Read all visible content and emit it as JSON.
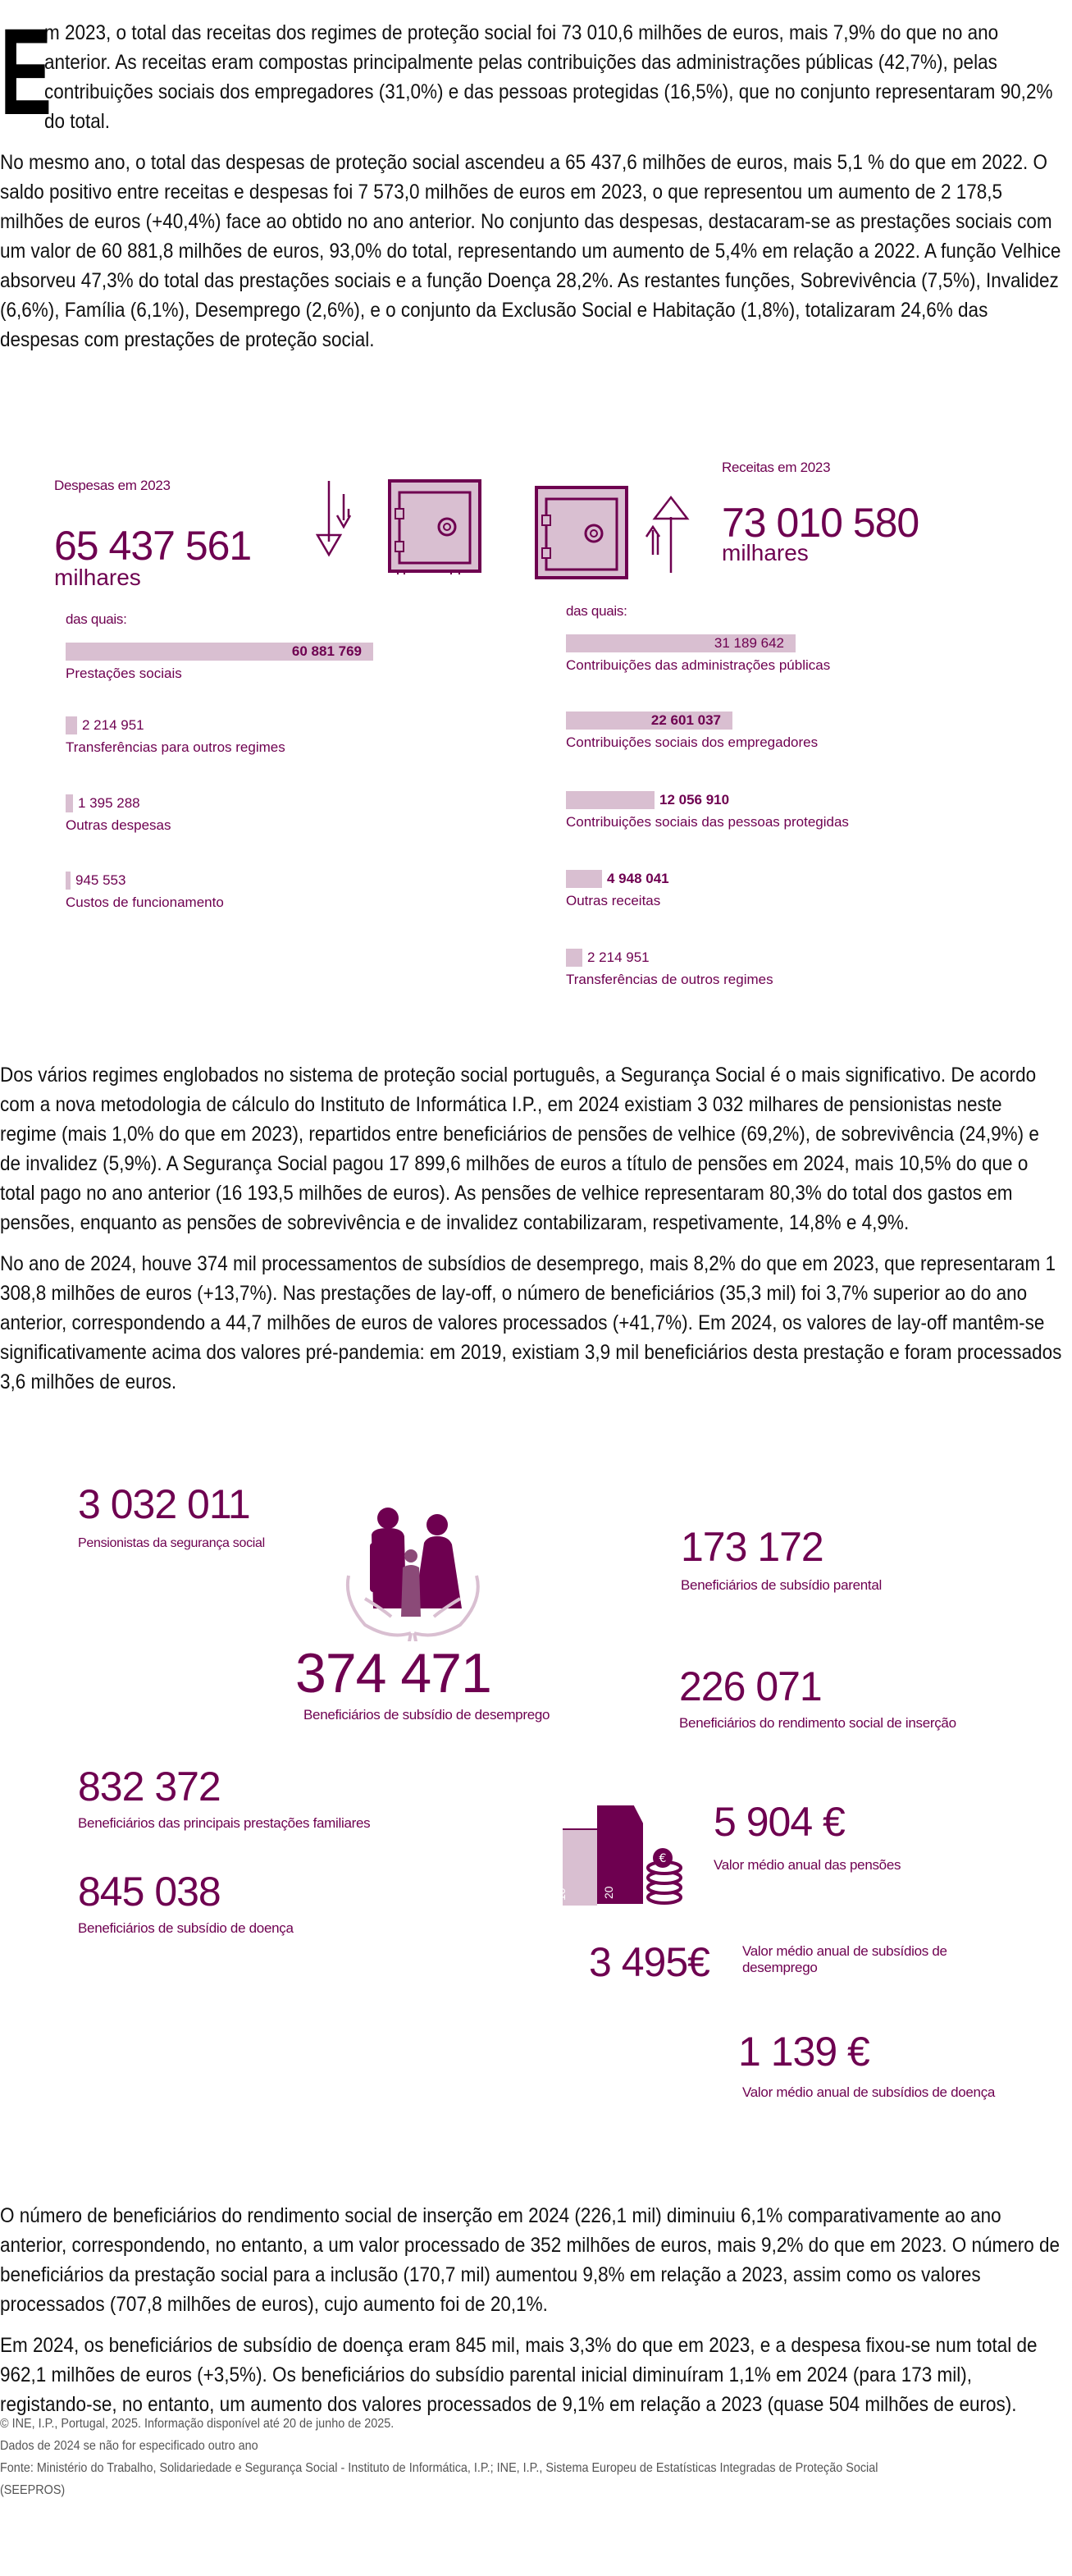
{
  "colors": {
    "accent": "#6e0050",
    "accent_light": "#d9bfd1",
    "text": "#111111",
    "footer": "#555555"
  },
  "intro": {
    "drop_cap": "E",
    "p1": "m 2023, o total das receitas dos regimes de proteção social foi 73 010,6 milhões de euros, mais 7,9% do que no ano anterior. As receitas eram compostas principalmente pelas contribuições das administrações públicas (42,7%), pelas contribuições sociais dos empregadores (31,0%) e das pessoas protegidas (16,5%), que no conjunto representaram 90,2% do total.",
    "p2": "No mesmo ano, o total das despesas de proteção social ascendeu a 65 437,6 milhões de euros, mais 5,1 % do que em 2022. O saldo positivo entre receitas e despesas foi 7 573,0 milhões de euros em 2023, o que representou um aumento de 2 178,5 milhões de euros (+40,4%) face ao obtido no ano anterior. No conjunto das despesas, destacaram-se as prestações sociais com um valor de 60 881,8 milhões de euros, 93,0% do total, representando um aumento de 5,4% em relação a 2022. A função Velhice absorveu 47,3% do total das prestações sociais e a função Doença 28,2%. As restantes funções, Sobrevivência (7,5%), Invalidez (6,6%), Família (6,1%), Desemprego (2,6%), e o conjunto da Exclusão Social e Habitação (1,8%), totalizaram 24,6% das despesas com prestações de proteção social."
  },
  "finance": {
    "expenses": {
      "title": "Despesas em 2023",
      "total": "65 437 561",
      "unit": "milhares",
      "of_which": "das quais:",
      "items": [
        {
          "value": "60 881 769",
          "amount": 60881769,
          "label": "Prestações sociais"
        },
        {
          "value": "2 214 951",
          "amount": 2214951,
          "label": "Transferências para outros regimes"
        },
        {
          "value": "1 395 288",
          "amount": 1395288,
          "label": "Outras despesas"
        },
        {
          "value": "945 553",
          "amount": 945553,
          "label": "Custos de funcionamento"
        }
      ]
    },
    "revenue": {
      "title": "Receitas em 2023",
      "total": "73 010 580",
      "unit": "milhares",
      "of_which": "das quais:",
      "items": [
        {
          "value": "31 189 642",
          "amount": 31189642,
          "label": "Contribuições das administrações públicas"
        },
        {
          "value": "22 601 037",
          "amount": 22601037,
          "label": "Contribuições sociais dos empregadores"
        },
        {
          "value": "12 056 910",
          "amount": 12056910,
          "label": "Contribuições sociais das pessoas protegidas"
        },
        {
          "value": "4 948 041",
          "amount": 4948041,
          "label": "Outras receitas"
        },
        {
          "value": "2 214 951",
          "amount": 2214951,
          "label": "Transferências de outros regimes"
        }
      ]
    }
  },
  "middle": {
    "p1": "Dos vários regimes englobados no sistema de proteção social português, a Segurança Social é o mais significativo. De acordo com a nova metodologia de cálculo do Instituto de Informática I.P., em 2024 existiam 3 032 milhares de pensionistas neste regime (mais 1,0% do que em 2023), repartidos entre beneficiários de pensões de velhice (69,2%), de sobrevivência (24,9%) e de invalidez (5,9%). A Segurança Social pagou 17 899,6 milhões de euros a título de pensões em 2024, mais 10,5% do que o total pago no ano anterior (16 193,5 milhões de euros). As pensões de velhice representaram 80,3% do total dos gastos em pensões, enquanto as pensões de sobrevivência e de invalidez contabilizaram, respetivamente, 14,8% e 4,9%.",
    "p2": "No ano de 2024, houve 374 mil processamentos de subsídios de desemprego, mais 8,2% do que em 2023, que representaram 1 308,8 milhões de euros (+13,7%). Nas prestações de lay-off, o número de beneficiários (35,3 mil) foi 3,7% superior ao do ano anterior, correspondendo a 44,7 milhões de euros de valores processados (+41,7%). Em 2024, os valores de lay-off mantêm-se significativamente acima dos valores pré-pandemia: em 2019, existiam 3,9 mil beneficiários desta prestação e foram processados 3,6 milhões de euros."
  },
  "stats": {
    "pensioners": {
      "value": "3 032 011",
      "label": "Pensionistas da segurança social"
    },
    "parental": {
      "value": "173 172",
      "label": "Beneficiários de subsídio parental"
    },
    "unemployment": {
      "value": "374 471",
      "label": "Beneficiários de subsídio de desemprego"
    },
    "rsi": {
      "value": "226 071",
      "label": "Beneficiários do rendimento social de inserção"
    },
    "family": {
      "value": "832 372",
      "label": "Beneficiários das principais prestações familiares"
    },
    "sickness": {
      "value": "845 038",
      "label": "Beneficiários de subsídio de doença"
    },
    "avg_pension": {
      "value": "5 904 €",
      "label": "Valor médio anual das pensões"
    },
    "avg_unemployment": {
      "value": "3 495€",
      "label": "Valor médio anual de subsídios de desemprego"
    },
    "avg_sickness": {
      "value": "1 139 €",
      "label": "Valor médio anual de subsídios de doença"
    },
    "banknote_labels": [
      "10",
      "20"
    ]
  },
  "closing": {
    "p1": "O número de beneficiários do rendimento social de inserção em 2024 (226,1 mil) diminuiu 6,1% comparativamente ao ano anterior, correspondendo, no entanto, a um valor processado de 352 milhões de euros, mais 9,2% do que em 2023. O número de beneficiários da prestação social para a inclusão (170,7 mil) aumentou 9,8% em relação a 2023, assim como os valores processados (707,8 milhões de euros), cujo aumento foi de 20,1%.",
    "p2": "Em 2024, os beneficiários de subsídio de doença eram 845 mil, mais 3,3% do que em 2023, e a despesa fixou-se num total de 962,1 milhões de euros (+3,5%). Os beneficiários do subsídio parental inicial diminuíram 1,1% em 2024 (para 173 mil), registando-se, no entanto, um aumento dos valores processados de 9,1% em relação a 2023 (quase 504 milhões de euros)."
  },
  "footer": {
    "copyright": "© INE, I.P., Portugal, 2025. Informação disponível até 20 de junho de 2025.",
    "note": "Dados de 2024 se não for especificado outro ano",
    "source": "Fonte: Ministério do Trabalho, Solidariedade e Segurança Social - Instituto de Informática, I.P.; INE, I.P., Sistema Europeu de Estatísticas Integradas de Proteção Social (SEEPROS)"
  }
}
